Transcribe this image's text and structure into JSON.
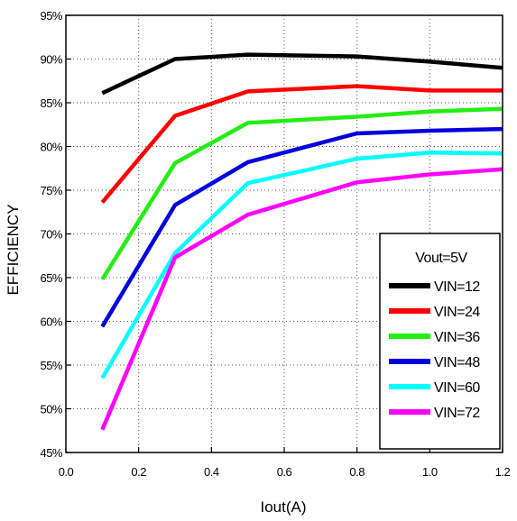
{
  "chart_data": {
    "type": "line",
    "xlabel": "Iout(A)",
    "ylabel": "EFFICIENCY",
    "xlim": [
      0.0,
      1.2
    ],
    "ylim": [
      45,
      95
    ],
    "x_ticks": [
      "0.0",
      "0.2",
      "0.4",
      "0.6",
      "0.8",
      "1.0",
      "1.2"
    ],
    "y_ticks": [
      "45%",
      "50%",
      "55%",
      "60%",
      "65%",
      "70%",
      "75%",
      "80%",
      "85%",
      "90%",
      "95%"
    ],
    "grid": true,
    "legend": {
      "title": "Vout=5V",
      "placement": "bottom-right"
    },
    "x": [
      0.1,
      0.3,
      0.5,
      0.8,
      1.0,
      1.2
    ],
    "series": [
      {
        "name": "VIN=12",
        "color": "#000000",
        "values": [
          86.1,
          90.0,
          90.5,
          90.3,
          89.7,
          89.0
        ]
      },
      {
        "name": "VIN=24",
        "color": "#ff0000",
        "values": [
          73.6,
          83.5,
          86.3,
          86.9,
          86.4,
          86.4
        ]
      },
      {
        "name": "VIN=36",
        "color": "#22ee11",
        "values": [
          64.8,
          78.1,
          82.7,
          83.4,
          84.0,
          84.3
        ]
      },
      {
        "name": "VIN=48",
        "color": "#0000dd",
        "values": [
          59.4,
          73.3,
          78.2,
          81.5,
          81.8,
          82.0
        ]
      },
      {
        "name": "VIN=60",
        "color": "#00ffff",
        "values": [
          53.5,
          67.8,
          75.8,
          78.6,
          79.3,
          79.2
        ]
      },
      {
        "name": "VIN=72",
        "color": "#ff00ff",
        "values": [
          47.6,
          67.3,
          72.2,
          75.9,
          76.8,
          77.4
        ]
      }
    ]
  }
}
